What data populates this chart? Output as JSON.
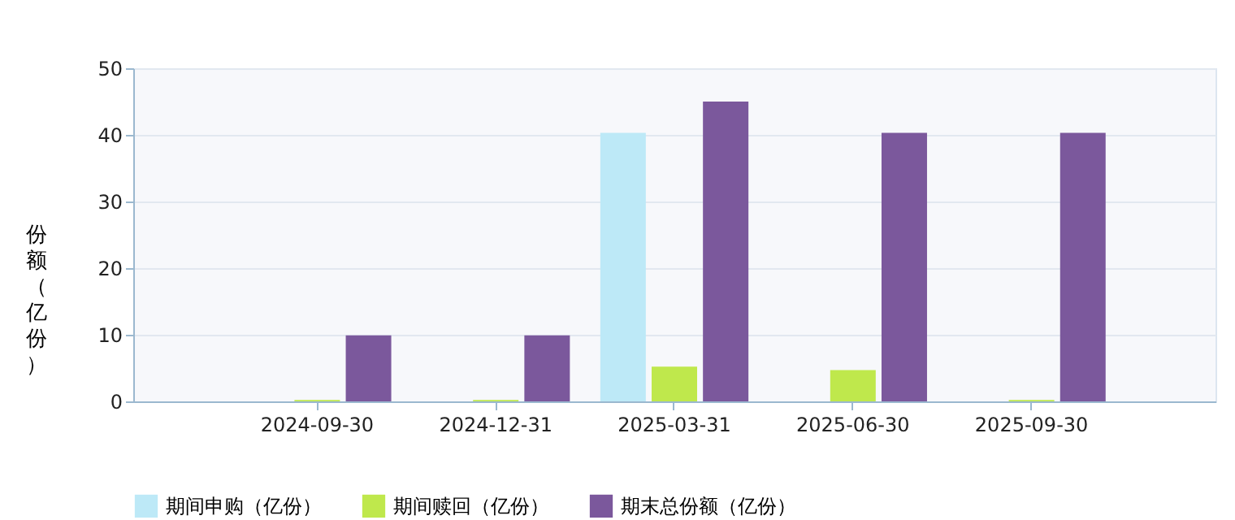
{
  "chart_data": {
    "type": "bar",
    "ylabel": "份额（亿份）",
    "categories": [
      "2024-09-30",
      "2024-12-31",
      "2025-03-31",
      "2025-06-30",
      "2025-09-30"
    ],
    "series": [
      {
        "name": "期间申购（亿份）",
        "color": "#bde9f7",
        "values": [
          null,
          null,
          40.3,
          null,
          null
        ]
      },
      {
        "name": "期间赎回（亿份）",
        "color": "#bfe84c",
        "values": [
          0.2,
          0.2,
          5.2,
          4.7,
          0.2
        ]
      },
      {
        "name": "期末总份额（亿份）",
        "color": "#7b589c",
        "values": [
          9.9,
          9.9,
          45.0,
          40.3,
          40.3
        ]
      }
    ],
    "ylim": [
      0,
      50
    ],
    "yticks": [
      0,
      10,
      20,
      30,
      40,
      50
    ],
    "grid": "y",
    "legend": "bottom"
  }
}
